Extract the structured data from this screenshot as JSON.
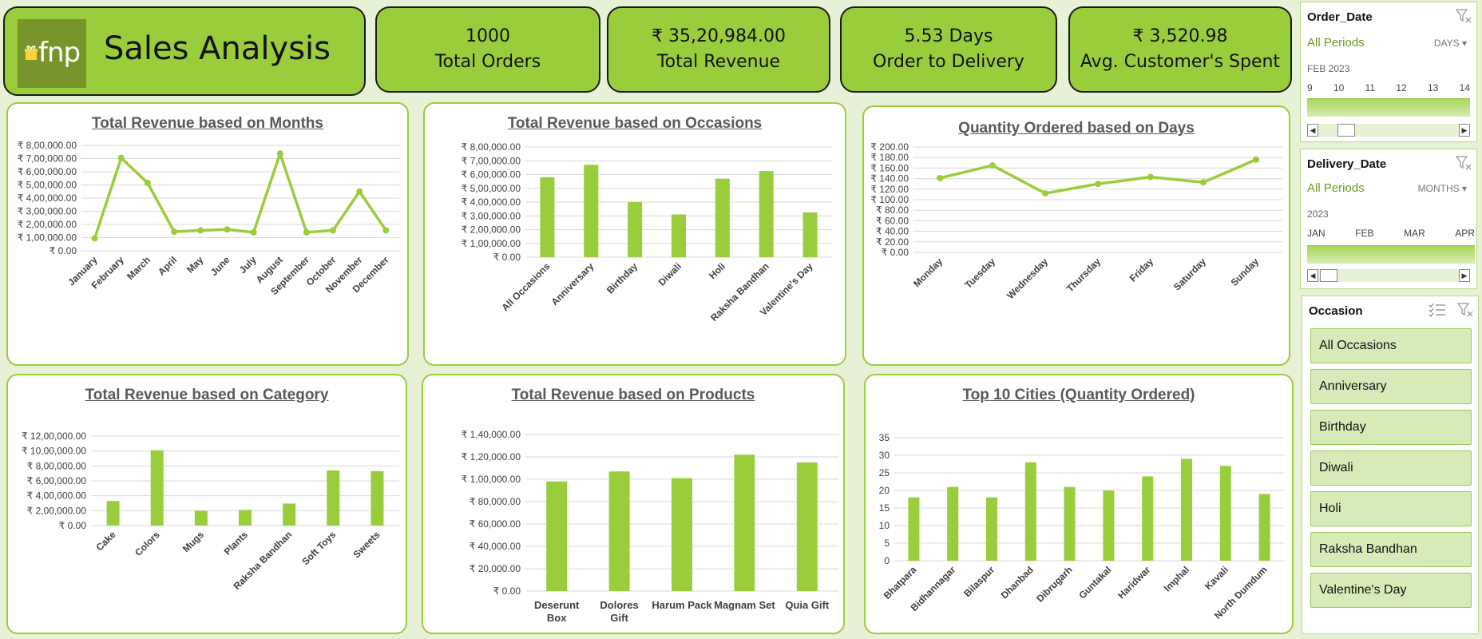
{
  "header": {
    "logo_text": "fnp",
    "title": "Sales Analysis"
  },
  "kpis": [
    {
      "value": "1000",
      "label": "Total Orders"
    },
    {
      "value": "₹ 35,20,984.00",
      "label": "Total Revenue"
    },
    {
      "value": "5.53 Days",
      "label": "Order to Delivery"
    },
    {
      "value": "₹ 3,520.98",
      "label": "Avg. Customer's Spent"
    }
  ],
  "colors": {
    "accent": "#9acd3b",
    "line": "#9acd3b",
    "background": "#e6f1d6",
    "title_text": "#595959"
  },
  "chart_data": [
    {
      "id": "months",
      "type": "line",
      "title": "Total Revenue based on Months",
      "categories": [
        "January",
        "February",
        "March",
        "April",
        "May",
        "June",
        "July",
        "August",
        "September",
        "October",
        "November",
        "December"
      ],
      "values": [
        95000,
        705000,
        515000,
        145000,
        155000,
        162000,
        140000,
        738000,
        140000,
        155000,
        450000,
        155000
      ],
      "ylim": [
        0,
        800000
      ],
      "ystep": 100000,
      "yformat": "rupee2",
      "markers": true,
      "rotate": true
    },
    {
      "id": "occasions",
      "type": "bar",
      "title": "Total Revenue based on Occasions",
      "categories": [
        "All Occasions",
        "Anniversary",
        "Birthday",
        "Diwali",
        "Holi",
        "Raksha Bandhan",
        "Valentine's Day"
      ],
      "values": [
        580000,
        670000,
        400000,
        310000,
        570000,
        625000,
        325000
      ],
      "ylim": [
        0,
        800000
      ],
      "ystep": 100000,
      "yformat": "rupee2",
      "rotate": true
    },
    {
      "id": "days",
      "type": "line",
      "title": "Quantity Ordered based on Days",
      "categories": [
        "Monday",
        "Tuesday",
        "Wednesday",
        "Thursday",
        "Friday",
        "Saturday",
        "Sunday"
      ],
      "values": [
        141,
        165,
        112,
        130,
        143,
        133,
        176
      ],
      "ylim": [
        0,
        200
      ],
      "ystep": 20,
      "yformat": "rupee2",
      "markers": true,
      "rotate": true
    },
    {
      "id": "category",
      "type": "bar",
      "title": "Total Revenue based on Category",
      "categories": [
        "Cake",
        "Colors",
        "Mugs",
        "Plants",
        "Raksha Bandhan",
        "Soft Toys",
        "Sweets"
      ],
      "values": [
        330000,
        1010000,
        200000,
        210000,
        295000,
        740000,
        730000
      ],
      "ylim": [
        0,
        1200000
      ],
      "ystep": 200000,
      "yformat": "rupee2",
      "rotate": true
    },
    {
      "id": "products",
      "type": "bar",
      "title": "Total Revenue based on Products",
      "categories": [
        "Deserunt Box",
        "Dolores Gift",
        "Harum Pack",
        "Magnam Set",
        "Quia Gift"
      ],
      "values": [
        98000,
        107000,
        101000,
        122000,
        115000
      ],
      "ylim": [
        0,
        140000
      ],
      "ystep": 20000,
      "yformat": "rupee2",
      "rotate": false
    },
    {
      "id": "cities",
      "type": "bar",
      "title": "Top 10 Cities (Quantity Ordered)",
      "categories": [
        "Bhatpara",
        "Bidhannagar",
        "Bilaspur",
        "Dhanbad",
        "Dibrugarh",
        "Guntakal",
        "Haridwar",
        "Imphal",
        "Kavali",
        "North Dumdum"
      ],
      "values": [
        18,
        21,
        18,
        28,
        21,
        20,
        24,
        29,
        27,
        19
      ],
      "ylim": [
        0,
        35
      ],
      "ystep": 5,
      "yformat": "int",
      "rotate": true
    }
  ],
  "slicers": {
    "order_date": {
      "title": "Order_Date",
      "period": "All Periods",
      "unit": "DAYS",
      "sub": "FEB 2023",
      "ticks": [
        "9",
        "10",
        "11",
        "12",
        "13",
        "14"
      ]
    },
    "delivery_date": {
      "title": "Delivery_Date",
      "period": "All Periods",
      "unit": "MONTHS",
      "sub": "2023",
      "ticks": [
        "JAN",
        "FEB",
        "MAR",
        "APR"
      ]
    },
    "occasion": {
      "title": "Occasion",
      "items": [
        "All Occasions",
        "Anniversary",
        "Birthday",
        "Diwali",
        "Holi",
        "Raksha Bandhan",
        "Valentine's Day"
      ]
    }
  }
}
